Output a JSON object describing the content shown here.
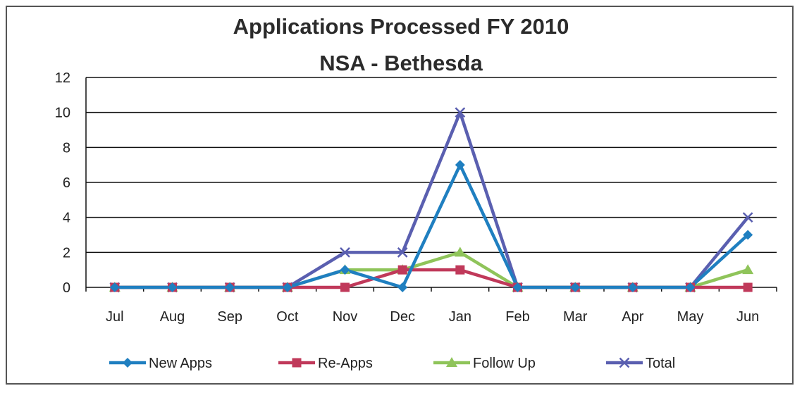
{
  "chart_data": {
    "type": "line",
    "title": "Applications Processed FY 2010",
    "subtitle": "NSA - Bethesda",
    "categories": [
      "Jul",
      "Aug",
      "Sep",
      "Oct",
      "Nov",
      "Dec",
      "Jan",
      "Feb",
      "Mar",
      "Apr",
      "May",
      "Jun"
    ],
    "ylim": [
      0,
      12
    ],
    "yticks": [
      0,
      2,
      4,
      6,
      8,
      10,
      12
    ],
    "grid": true,
    "legend_position": "bottom",
    "series": [
      {
        "name": "New Apps",
        "color": "#1f7fc0",
        "marker": "diamond",
        "values": [
          0,
          0,
          0,
          0,
          1,
          0,
          7,
          0,
          0,
          0,
          0,
          3
        ]
      },
      {
        "name": "Re-Apps",
        "color": "#c0395a",
        "marker": "square",
        "values": [
          0,
          0,
          0,
          0,
          0,
          1,
          1,
          0,
          0,
          0,
          0,
          0
        ]
      },
      {
        "name": "Follow Up",
        "color": "#8fc45a",
        "marker": "triangle",
        "values": [
          0,
          0,
          0,
          0,
          1,
          1,
          2,
          0,
          0,
          0,
          0,
          1
        ]
      },
      {
        "name": "Total",
        "color": "#5a5fb0",
        "marker": "x",
        "values": [
          0,
          0,
          0,
          0,
          2,
          2,
          10,
          0,
          0,
          0,
          0,
          4
        ]
      }
    ]
  }
}
